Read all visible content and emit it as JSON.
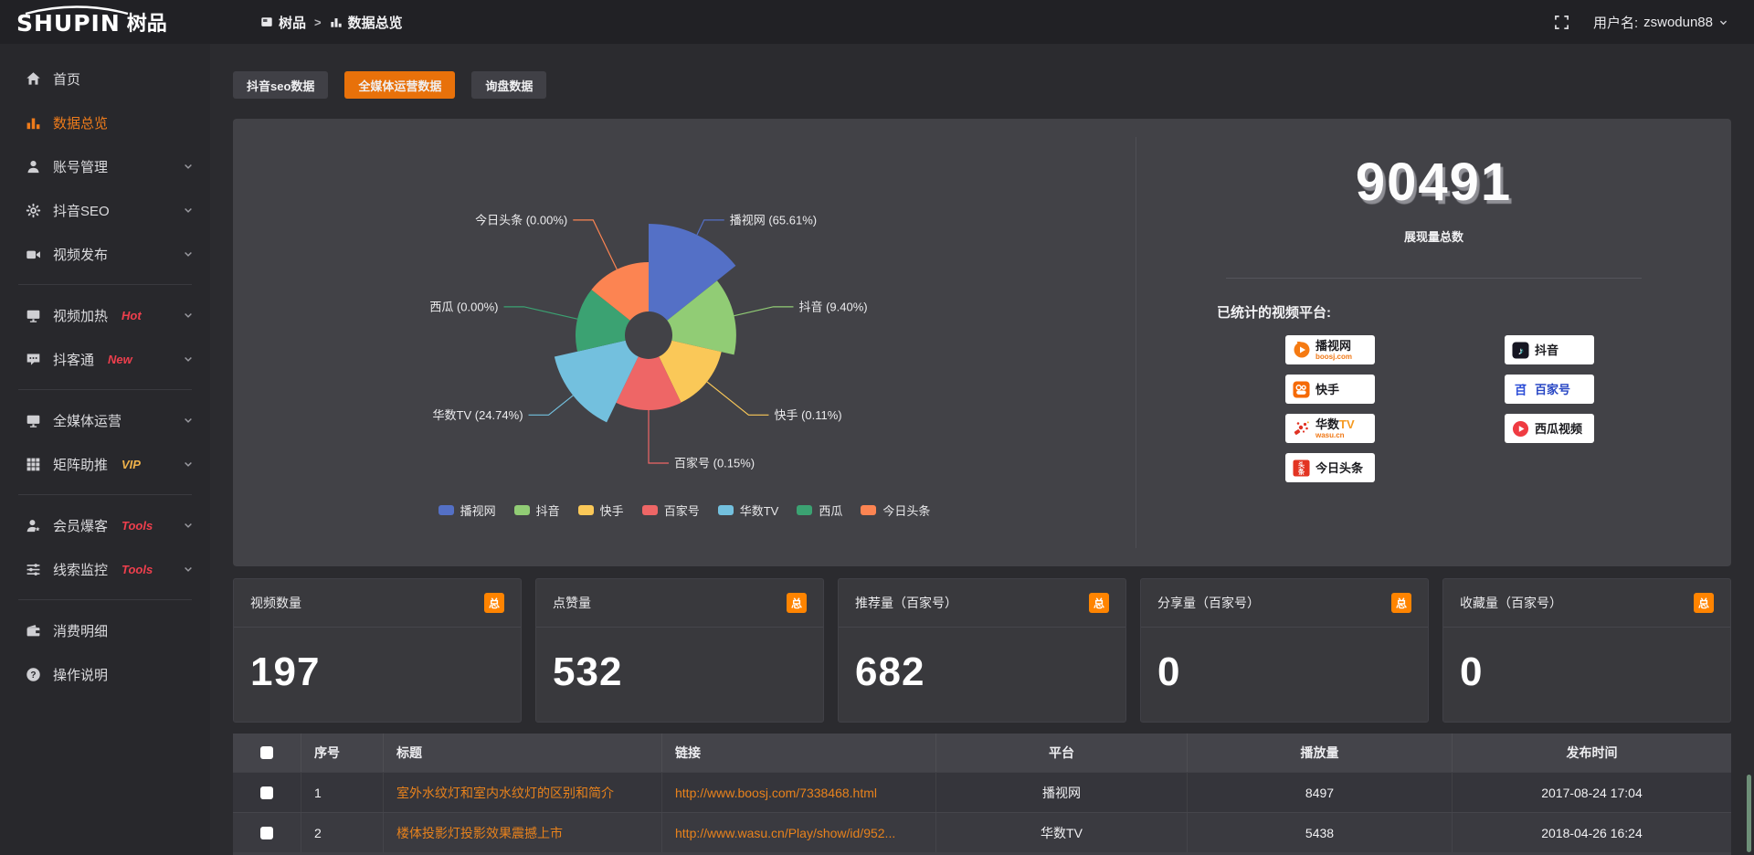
{
  "header": {
    "logo_en": "SHUPIN",
    "logo_cn": "树品",
    "breadcrumb": {
      "app": "树品",
      "separator": ">",
      "page": "数据总览"
    },
    "username_prefix": "用户名:",
    "username": "zswodun88"
  },
  "sidebar": {
    "items": [
      {
        "key": "home",
        "icon": "home-icon",
        "label": "首页",
        "active": false,
        "chevron": false
      },
      {
        "key": "data-overview",
        "icon": "bar-chart-icon",
        "label": "数据总览",
        "active": true,
        "chevron": false
      },
      {
        "key": "account-management",
        "icon": "user-icon",
        "label": "账号管理",
        "active": false,
        "chevron": true
      },
      {
        "key": "douyin-seo",
        "icon": "gear-icon",
        "label": "抖音SEO",
        "active": false,
        "chevron": true
      },
      {
        "key": "video-publish",
        "icon": "video-camera-icon",
        "label": "视频发布",
        "active": false,
        "chevron": true
      },
      {
        "divider": true
      },
      {
        "key": "video-heating",
        "icon": "monitor-play-icon",
        "label": "视频加热",
        "badge": "Hot",
        "badge_color": "#ee3f4d",
        "active": false,
        "chevron": true
      },
      {
        "key": "doukor-tong",
        "icon": "chat-icon",
        "label": "抖客通",
        "badge": "New",
        "badge_color": "#ee3f4d",
        "active": false,
        "chevron": true
      },
      {
        "divider": true
      },
      {
        "key": "omni-media",
        "icon": "monitor-icon",
        "label": "全媒体运营",
        "active": false,
        "chevron": true
      },
      {
        "key": "matrix-boost",
        "icon": "grid-icon",
        "label": "矩阵助推",
        "badge": "VIP",
        "badge_color": "#eeb14a",
        "active": false,
        "chevron": true
      },
      {
        "divider": true
      },
      {
        "key": "member-burst",
        "icon": "user-star-icon",
        "label": "会员爆客",
        "badge": "Tools",
        "badge_color": "#ee3f4d",
        "active": false,
        "chevron": true
      },
      {
        "key": "lead-monitor",
        "icon": "sliders-icon",
        "label": "线索监控",
        "badge": "Tools",
        "badge_color": "#ee3f4d",
        "active": false,
        "chevron": true
      },
      {
        "divider": true
      },
      {
        "key": "expense-detail",
        "icon": "wallet-icon",
        "label": "消费明细",
        "active": false,
        "chevron": false
      },
      {
        "key": "instructions",
        "icon": "question-icon",
        "label": "操作说明",
        "active": false,
        "chevron": false
      }
    ]
  },
  "tabs": [
    {
      "label": "抖音seo数据",
      "active": false
    },
    {
      "label": "全媒体运营数据",
      "active": true
    },
    {
      "label": "询盘数据",
      "active": false
    }
  ],
  "chart_data": {
    "type": "pie",
    "subtype": "nightingale-rose",
    "title": "",
    "legend_position": "bottom",
    "label_format": "{name} ({value}%)",
    "series": [
      {
        "name": "播视网",
        "value": 65.61,
        "color": "#5470C6"
      },
      {
        "name": "抖音",
        "value": 9.4,
        "color": "#91CC75"
      },
      {
        "name": "快手",
        "value": 0.11,
        "color": "#FAC858"
      },
      {
        "name": "百家号",
        "value": 0.15,
        "color": "#EE6666"
      },
      {
        "name": "华数TV",
        "value": 24.74,
        "color": "#73C0DE"
      },
      {
        "name": "西瓜",
        "value": 0.0,
        "color": "#3BA272"
      },
      {
        "name": "今日头条",
        "value": 0.0,
        "color": "#FC8452"
      }
    ]
  },
  "overview": {
    "total": "90491",
    "total_label": "展现量总数",
    "platforms_label": "已统计的视频平台:",
    "platforms": [
      {
        "key": "boosj",
        "name": "播视网",
        "sub": "boosj.com"
      },
      {
        "key": "douyin",
        "name": "抖音",
        "sub": ""
      },
      {
        "key": "kuaishou",
        "name": "快手",
        "sub": ""
      },
      {
        "key": "baijiahao",
        "name": "百家号",
        "sub": ""
      },
      {
        "key": "wasu",
        "name": "华数TV",
        "sub": "wasu.cn"
      },
      {
        "key": "xigua",
        "name": "西瓜视频",
        "sub": ""
      },
      {
        "key": "toutiao",
        "name": "今日头条",
        "sub": ""
      }
    ]
  },
  "stat_cards": {
    "badge": "总",
    "cards": [
      {
        "title": "视频数量",
        "value": "197"
      },
      {
        "title": "点赞量",
        "value": "532"
      },
      {
        "title": "推荐量（百家号）",
        "value": "682"
      },
      {
        "title": "分享量（百家号）",
        "value": "0"
      },
      {
        "title": "收藏量（百家号）",
        "value": "0"
      }
    ]
  },
  "table": {
    "columns": [
      "",
      "序号",
      "标题",
      "链接",
      "平台",
      "播放量",
      "发布时间"
    ],
    "rows": [
      {
        "seq": "1",
        "title": "室外水纹灯和室内水纹灯的区别和简介",
        "link": "http://www.boosj.com/7338468.html",
        "platform": "播视网",
        "plays": "8497",
        "time": "2017-08-24 17:04"
      },
      {
        "seq": "2",
        "title": "楼体投影灯投影效果震撼上市",
        "link": "http://www.wasu.cn/Play/show/id/952...",
        "platform": "华数TV",
        "plays": "5438",
        "time": "2018-04-26 16:24"
      }
    ]
  },
  "colors": {
    "accent_orange": "#e8710a",
    "badge_orange": "#ff8400",
    "link_orange": "#e8821c",
    "panel_bg": "#424247",
    "page_bg": "#2b2b2f"
  }
}
